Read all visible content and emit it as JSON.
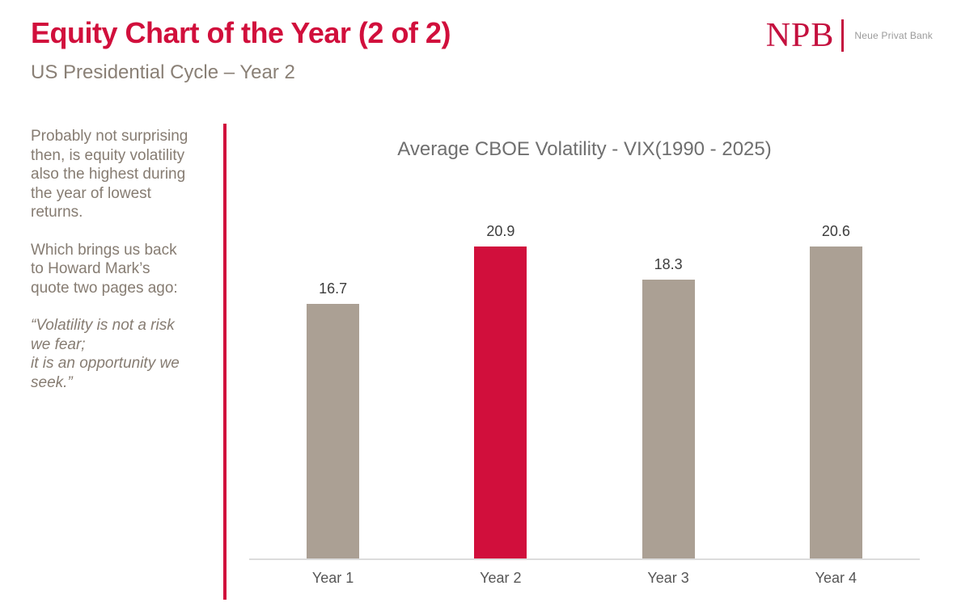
{
  "header": {
    "title": "Equity Chart of the Year (2 of 2)",
    "subtitle": "US Presidential Cycle – Year 2",
    "logo": {
      "initials": "NPB",
      "name": "Neue Privat Bank"
    }
  },
  "sidebar": {
    "paragraphs": [
      {
        "style": "normal",
        "text": "Probably not surprising\nthen, is equity volatility\nalso the highest during\nthe year of lowest\nreturns."
      },
      {
        "style": "normal",
        "text": "Which brings us back\nto Howard Mark’s\nquote two pages ago:"
      },
      {
        "style": "italic",
        "text": "“Volatility is not a risk\nwe fear;\nit is an opportunity we\nseek.”"
      }
    ]
  },
  "chart_data": {
    "type": "bar",
    "title": "Average CBOE Volatility - VIX(1990 - 2025)",
    "categories": [
      "Year 1",
      "Year 2",
      "Year 3",
      "Year 4"
    ],
    "values": [
      16.7,
      20.9,
      18.3,
      20.6
    ],
    "value_labels": [
      "16.7",
      "20.9",
      "18.3",
      "20.6"
    ],
    "xlabel": "",
    "ylabel": "",
    "ylim": [
      0,
      22
    ],
    "grid": false,
    "legend": "none",
    "highlight_index": 1,
    "colors": {
      "bar": "#aba094",
      "highlight": "#d10f3c"
    }
  },
  "colors": {
    "accent": "#d10f3c",
    "taupe_text": "#867c72",
    "chart_title_gray": "#6f6f6f",
    "axis_line": "#dcdcdc"
  }
}
